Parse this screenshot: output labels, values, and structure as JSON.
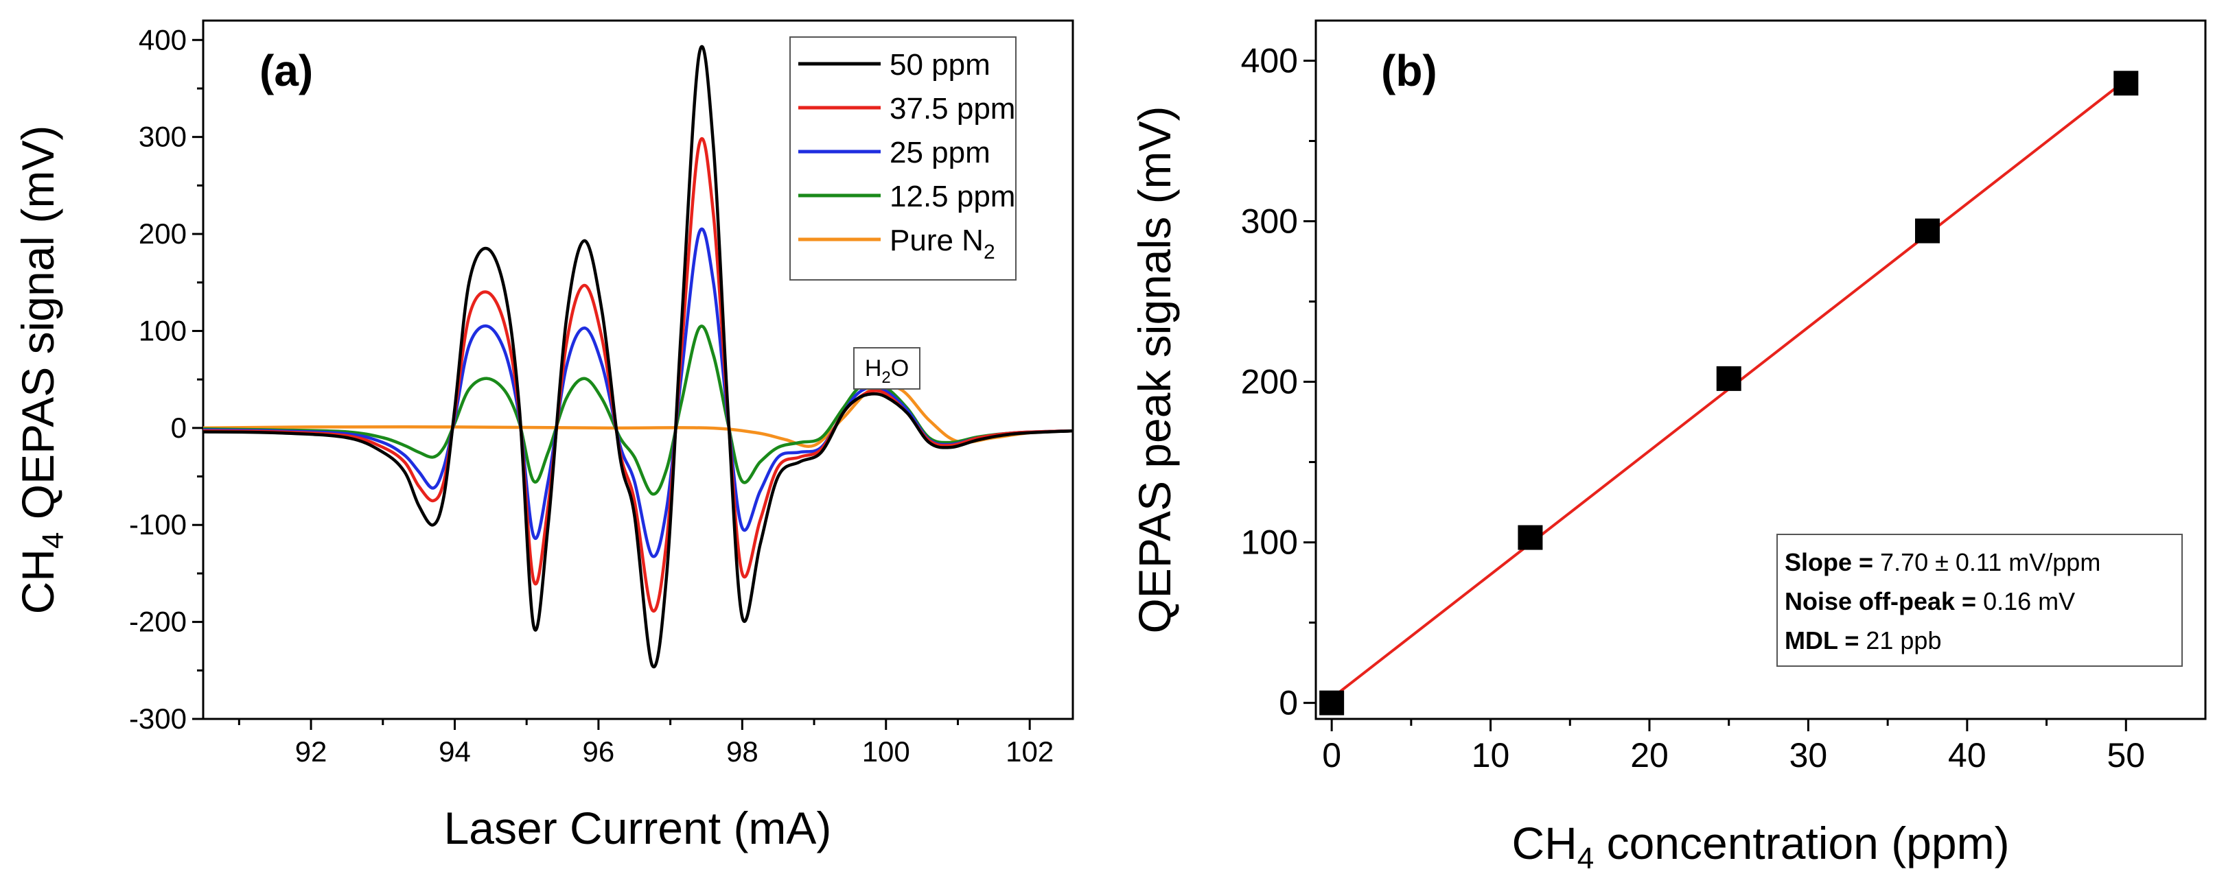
{
  "chart_data": [
    {
      "type": "line",
      "panel_label": "(a)",
      "xlabel": "Laser Current (mA)",
      "ylabel_main": "CH",
      "ylabel_sub": "4",
      "ylabel_rest": " QEPAS signal (mV)",
      "xlim": [
        90.5,
        102.6
      ],
      "ylim": [
        -300,
        420
      ],
      "x_ticks": [
        92,
        94,
        96,
        98,
        100,
        102
      ],
      "y_ticks": [
        -300,
        -200,
        -100,
        0,
        100,
        200,
        300,
        400
      ],
      "annotation_main": "H",
      "annotation_sub": "2",
      "annotation_rest": "O",
      "legend_position": "top-right",
      "series": [
        {
          "name": "50 ppm",
          "name_main": "50 ppm",
          "name_sub": "",
          "color": "#000000",
          "x": [
            90.5,
            91.5,
            92.5,
            93.0,
            93.3,
            93.5,
            93.7,
            93.85,
            94.0,
            94.2,
            94.45,
            94.7,
            94.9,
            95.1,
            95.3,
            95.55,
            95.8,
            96.05,
            96.3,
            96.5,
            96.75,
            96.95,
            97.15,
            97.4,
            97.6,
            97.8,
            98.0,
            98.25,
            98.5,
            98.8,
            99.1,
            99.4,
            99.6,
            99.8,
            100.0,
            100.3,
            100.6,
            100.9,
            101.3,
            101.8,
            102.6
          ],
          "y": [
            -4,
            -5,
            -10,
            -25,
            -45,
            -80,
            -100,
            -70,
            20,
            150,
            185,
            140,
            20,
            -205,
            -100,
            110,
            193,
            120,
            -30,
            -90,
            -245,
            -150,
            100,
            385,
            290,
            20,
            -195,
            -120,
            -50,
            -35,
            -25,
            15,
            30,
            35,
            32,
            15,
            -15,
            -20,
            -12,
            -6,
            -3
          ]
        },
        {
          "name": "37.5 ppm",
          "name_main": "37.5 ppm",
          "name_sub": "",
          "color": "#e8231c",
          "x": [
            90.5,
            91.5,
            92.5,
            93.0,
            93.3,
            93.5,
            93.7,
            93.85,
            94.0,
            94.2,
            94.45,
            94.7,
            94.9,
            95.1,
            95.3,
            95.55,
            95.8,
            96.05,
            96.3,
            96.5,
            96.75,
            96.95,
            97.15,
            97.4,
            97.6,
            97.8,
            98.0,
            98.25,
            98.5,
            98.8,
            99.1,
            99.4,
            99.6,
            99.8,
            100.0,
            100.3,
            100.6,
            100.9,
            101.3,
            101.8,
            102.6
          ],
          "y": [
            -3,
            -4,
            -8,
            -20,
            -35,
            -60,
            -75,
            -55,
            15,
            115,
            140,
            105,
            15,
            -158,
            -80,
            85,
            147,
            92,
            -25,
            -75,
            -188,
            -115,
            75,
            292,
            220,
            15,
            -150,
            -95,
            -40,
            -30,
            -22,
            15,
            30,
            38,
            35,
            15,
            -13,
            -18,
            -10,
            -5,
            -3
          ]
        },
        {
          "name": "25 ppm",
          "name_main": "25 ppm",
          "name_sub": "",
          "color": "#1f2ee0",
          "x": [
            90.5,
            91.5,
            92.5,
            93.0,
            93.3,
            93.5,
            93.7,
            93.85,
            94.0,
            94.2,
            94.45,
            94.7,
            94.9,
            95.1,
            95.3,
            95.55,
            95.8,
            96.05,
            96.3,
            96.5,
            96.75,
            96.95,
            97.15,
            97.4,
            97.6,
            97.8,
            98.0,
            98.25,
            98.5,
            98.8,
            99.1,
            99.4,
            99.6,
            99.8,
            100.0,
            100.3,
            100.6,
            100.9,
            101.3,
            101.8,
            102.6
          ],
          "y": [
            -2,
            -3,
            -6,
            -15,
            -28,
            -45,
            -62,
            -40,
            10,
            85,
            105,
            78,
            10,
            -112,
            -55,
            62,
            103,
            65,
            -18,
            -55,
            -132,
            -82,
            52,
            201,
            150,
            10,
            -103,
            -65,
            -30,
            -25,
            -20,
            15,
            35,
            42,
            38,
            18,
            -12,
            -17,
            -10,
            -5,
            -3
          ]
        },
        {
          "name": "12.5 ppm",
          "name_main": "12.5 ppm",
          "name_sub": "",
          "color": "#1a8a1a",
          "x": [
            90.5,
            91.5,
            92.5,
            93.0,
            93.3,
            93.5,
            93.7,
            93.85,
            94.0,
            94.2,
            94.45,
            94.7,
            94.9,
            95.1,
            95.3,
            95.55,
            95.8,
            96.05,
            96.3,
            96.5,
            96.75,
            96.95,
            97.15,
            97.4,
            97.6,
            97.8,
            98.0,
            98.25,
            98.5,
            98.8,
            99.1,
            99.4,
            99.6,
            99.8,
            100.0,
            100.3,
            100.6,
            100.9,
            101.3,
            101.8,
            102.6
          ],
          "y": [
            -1,
            -2,
            -4,
            -10,
            -18,
            -25,
            -30,
            -20,
            5,
            40,
            51,
            38,
            5,
            -55,
            -25,
            30,
            51,
            30,
            -10,
            -30,
            -68,
            -42,
            25,
            103,
            75,
            5,
            -55,
            -35,
            -20,
            -15,
            -10,
            20,
            40,
            48,
            42,
            20,
            -10,
            -15,
            -9,
            -5,
            -3
          ]
        },
        {
          "name": "Pure N2",
          "name_main": "Pure N",
          "name_sub": "2",
          "color": "#f5901e",
          "x": [
            90.5,
            92.0,
            94.0,
            96.0,
            97.5,
            98.2,
            98.6,
            99.0,
            99.4,
            99.8,
            100.2,
            100.6,
            101.0,
            101.5,
            102.0,
            102.6
          ],
          "y": [
            0,
            1,
            1,
            0,
            0,
            -5,
            -12,
            -18,
            10,
            40,
            40,
            8,
            -14,
            -10,
            -5,
            -3
          ]
        }
      ]
    },
    {
      "type": "scatter",
      "panel_label": "(b)",
      "xlabel_main": "CH",
      "xlabel_sub": "4",
      "xlabel_rest": " concentration (ppm)",
      "ylabel": "QEPAS peak signals (mV)",
      "xlim": [
        -1,
        55
      ],
      "ylim": [
        -10,
        425
      ],
      "x_ticks": [
        0,
        10,
        20,
        30,
        40,
        50
      ],
      "y_ticks": [
        0,
        100,
        200,
        300,
        400
      ],
      "points": {
        "x": [
          0,
          12.5,
          25,
          37.5,
          50
        ],
        "y": [
          0,
          103,
          202,
          294,
          386
        ]
      },
      "fit": {
        "x": [
          0,
          50
        ],
        "y": [
          3,
          388
        ],
        "color": "#e8231c"
      },
      "annotation_lines": [
        {
          "label": "Slope =",
          "value": " 7.70 ± 0.11 mV/ppm"
        },
        {
          "label": "Noise off-peak =",
          "value": " 0.16 mV"
        },
        {
          "label": "MDL =",
          "value": " 21 ppb"
        }
      ]
    }
  ]
}
